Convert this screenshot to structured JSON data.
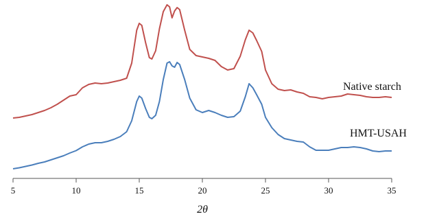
{
  "chart_data": {
    "type": "line",
    "xlabel": "2θ",
    "xlim": [
      5,
      35
    ],
    "xticks": [
      5,
      10,
      15,
      20,
      25,
      30,
      35
    ],
    "yaxis_visible": false,
    "grid": false,
    "legend": "inline labels at right end of each curve",
    "series": [
      {
        "name": "Native starch",
        "color": "#4a7ebb",
        "points": [
          [
            5.0,
            0.0
          ],
          [
            5.5,
            1.5
          ],
          [
            6.0,
            3.5
          ],
          [
            6.5,
            5.5
          ],
          [
            7.0,
            8.0
          ],
          [
            7.5,
            10.0
          ],
          [
            8.0,
            13.0
          ],
          [
            8.5,
            16.0
          ],
          [
            9.0,
            19.0
          ],
          [
            9.5,
            23.0
          ],
          [
            10.0,
            26.5
          ],
          [
            10.5,
            32.0
          ],
          [
            11.0,
            36.0
          ],
          [
            11.5,
            38.0
          ],
          [
            12.0,
            38.0
          ],
          [
            12.5,
            40.0
          ],
          [
            13.0,
            43.0
          ],
          [
            13.5,
            47.0
          ],
          [
            14.0,
            54.0
          ],
          [
            14.4,
            70.0
          ],
          [
            14.8,
            98.0
          ],
          [
            15.0,
            106.0
          ],
          [
            15.2,
            103.0
          ],
          [
            15.5,
            88.0
          ],
          [
            15.8,
            75.0
          ],
          [
            16.0,
            73.0
          ],
          [
            16.3,
            78.0
          ],
          [
            16.6,
            98.0
          ],
          [
            16.9,
            130.0
          ],
          [
            17.2,
            154.0
          ],
          [
            17.4,
            156.0
          ],
          [
            17.6,
            150.0
          ],
          [
            17.8,
            148.0
          ],
          [
            18.0,
            155.0
          ],
          [
            18.2,
            152.0
          ],
          [
            18.6,
            130.0
          ],
          [
            19.0,
            103.0
          ],
          [
            19.5,
            86.0
          ],
          [
            20.0,
            82.0
          ],
          [
            20.5,
            85.0
          ],
          [
            21.0,
            82.0
          ],
          [
            21.5,
            78.0
          ],
          [
            22.0,
            75.0
          ],
          [
            22.5,
            76.0
          ],
          [
            23.0,
            84.0
          ],
          [
            23.4,
            105.0
          ],
          [
            23.7,
            124.0
          ],
          [
            24.0,
            118.0
          ],
          [
            24.3,
            108.0
          ],
          [
            24.7,
            94.0
          ],
          [
            25.0,
            75.0
          ],
          [
            25.5,
            60.0
          ],
          [
            26.0,
            50.0
          ],
          [
            26.5,
            44.0
          ],
          [
            27.0,
            42.0
          ],
          [
            27.5,
            40.0
          ],
          [
            28.0,
            39.0
          ],
          [
            28.5,
            32.0
          ],
          [
            29.0,
            27.0
          ],
          [
            29.5,
            27.0
          ],
          [
            30.0,
            27.0
          ],
          [
            30.5,
            29.0
          ],
          [
            31.0,
            31.0
          ],
          [
            31.5,
            31.0
          ],
          [
            32.0,
            32.0
          ],
          [
            32.5,
            31.0
          ],
          [
            33.0,
            29.0
          ],
          [
            33.5,
            26.0
          ],
          [
            34.0,
            25.0
          ],
          [
            34.5,
            26.0
          ],
          [
            35.0,
            26.0
          ]
        ]
      },
      {
        "name": "HMT-USAH",
        "color": "#c0504d",
        "points": [
          [
            5.0,
            0.0
          ],
          [
            5.5,
            1.0
          ],
          [
            6.0,
            3.0
          ],
          [
            6.5,
            5.0
          ],
          [
            7.0,
            8.0
          ],
          [
            7.5,
            11.0
          ],
          [
            8.0,
            15.0
          ],
          [
            8.5,
            20.0
          ],
          [
            9.0,
            26.0
          ],
          [
            9.5,
            32.0
          ],
          [
            10.0,
            34.0
          ],
          [
            10.5,
            44.0
          ],
          [
            11.0,
            49.0
          ],
          [
            11.5,
            51.0
          ],
          [
            12.0,
            50.0
          ],
          [
            12.5,
            51.0
          ],
          [
            13.0,
            53.0
          ],
          [
            13.5,
            55.0
          ],
          [
            14.0,
            58.0
          ],
          [
            14.4,
            80.0
          ],
          [
            14.8,
            128.0
          ],
          [
            15.0,
            138.0
          ],
          [
            15.2,
            135.0
          ],
          [
            15.5,
            110.0
          ],
          [
            15.8,
            88.0
          ],
          [
            16.0,
            86.0
          ],
          [
            16.3,
            98.0
          ],
          [
            16.6,
            130.0
          ],
          [
            16.9,
            155.0
          ],
          [
            17.2,
            165.0
          ],
          [
            17.4,
            162.0
          ],
          [
            17.6,
            146.0
          ],
          [
            17.8,
            156.0
          ],
          [
            18.0,
            161.0
          ],
          [
            18.2,
            158.0
          ],
          [
            18.6,
            128.0
          ],
          [
            19.0,
            100.0
          ],
          [
            19.5,
            91.0
          ],
          [
            20.0,
            89.0
          ],
          [
            20.5,
            87.0
          ],
          [
            21.0,
            84.0
          ],
          [
            21.5,
            75.0
          ],
          [
            22.0,
            70.0
          ],
          [
            22.5,
            72.0
          ],
          [
            23.0,
            90.0
          ],
          [
            23.4,
            114.0
          ],
          [
            23.7,
            128.0
          ],
          [
            24.0,
            124.0
          ],
          [
            24.3,
            113.0
          ],
          [
            24.7,
            97.0
          ],
          [
            25.0,
            70.0
          ],
          [
            25.5,
            50.0
          ],
          [
            26.0,
            42.0
          ],
          [
            26.5,
            40.0
          ],
          [
            27.0,
            41.0
          ],
          [
            27.5,
            38.0
          ],
          [
            28.0,
            36.0
          ],
          [
            28.5,
            31.0
          ],
          [
            29.0,
            30.0
          ],
          [
            29.5,
            28.0
          ],
          [
            30.0,
            30.0
          ],
          [
            30.5,
            31.0
          ],
          [
            31.0,
            32.0
          ],
          [
            31.5,
            35.0
          ],
          [
            32.0,
            34.0
          ],
          [
            32.5,
            33.0
          ],
          [
            33.0,
            31.0
          ],
          [
            33.5,
            30.0
          ],
          [
            34.0,
            30.0
          ],
          [
            34.5,
            31.0
          ],
          [
            35.0,
            30.0
          ]
        ]
      }
    ]
  }
}
